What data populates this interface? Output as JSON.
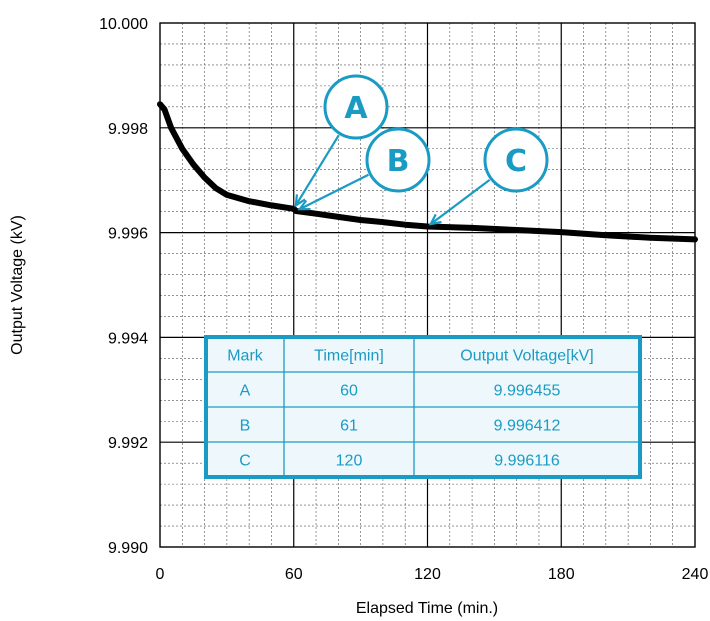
{
  "chart_data": {
    "type": "line",
    "title": "",
    "xlabel": "Elapsed Time (min.)",
    "ylabel": "Output Voltage (kV)",
    "xlim": [
      0,
      240
    ],
    "ylim": [
      9.99,
      10.0
    ],
    "x_ticks": [
      "0",
      "60",
      "120",
      "180",
      "240"
    ],
    "y_ticks": [
      "9.990",
      "9.992",
      "9.994",
      "9.996",
      "9.998",
      "10.000"
    ],
    "grid": true,
    "series": [
      {
        "x": [
          0,
          2,
          5,
          10,
          15,
          20,
          25,
          30,
          40,
          50,
          60,
          61,
          70,
          80,
          90,
          100,
          110,
          120,
          140,
          160,
          180,
          200,
          220,
          240
        ],
        "values": [
          9.99845,
          9.99835,
          9.998,
          9.9976,
          9.9973,
          9.99705,
          9.99685,
          9.99672,
          9.9966,
          9.99652,
          9.996455,
          9.996412,
          9.99636,
          9.9963,
          9.99624,
          9.9962,
          9.99615,
          9.996116,
          9.99609,
          9.99605,
          9.99601,
          9.99595,
          9.9959,
          9.99587
        ]
      }
    ],
    "callouts": [
      {
        "label": "A",
        "x": 60,
        "y": 9.996455
      },
      {
        "label": "B",
        "x": 61,
        "y": 9.996412
      },
      {
        "label": "C",
        "x": 120,
        "y": 9.996116
      }
    ],
    "table": {
      "headers": [
        "Mark",
        "Time[min]",
        "Output Voltage[kV]"
      ],
      "rows": [
        [
          "A",
          "60",
          "9.996455"
        ],
        [
          "B",
          "61",
          "9.996412"
        ],
        [
          "C",
          "120",
          "9.996116"
        ]
      ]
    },
    "colors": {
      "line": "#000000",
      "accent": "#1a9bc4",
      "table_bg": "#eef8fc"
    }
  }
}
